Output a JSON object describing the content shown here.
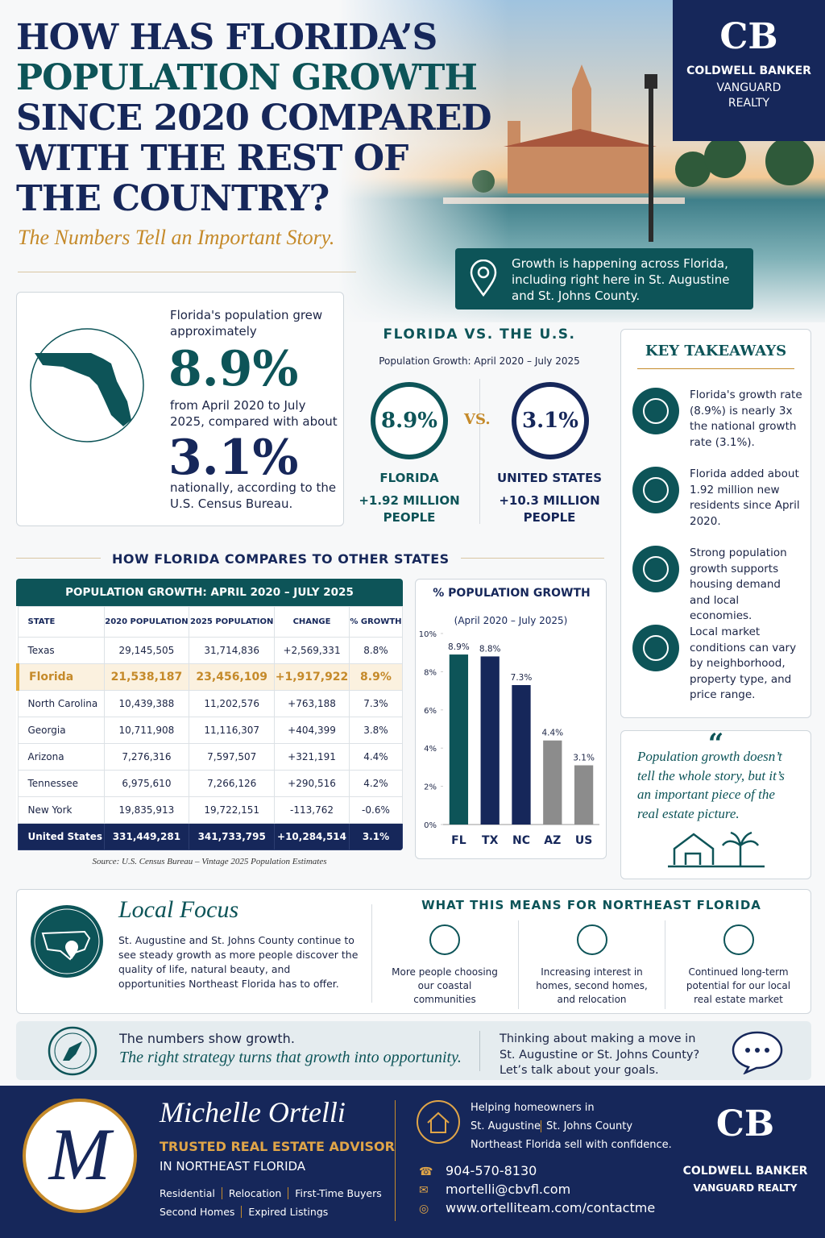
{
  "header": {
    "title_lines": [
      "HOW HAS FLORIDA’S",
      "POPULATION GROWTH",
      "SINCE 2020 COMPARED",
      "WITH THE REST OF",
      "THE COUNTRY?"
    ],
    "subtitle": "The Numbers Tell an Important Story.",
    "location_note": "Growth is happening across Florida, including right here in St. Augustine and St. Johns County."
  },
  "brand": {
    "monogram": "CB",
    "name": "COLDWELL BANKER",
    "sub_lines": [
      "VANGUARD",
      "REALTY"
    ]
  },
  "summary": {
    "intro": "Florida's population grew approximately",
    "florida_pct": "8.9%",
    "middle": "from April 2020 to July 2025, compared with about",
    "us_pct": "3.1%",
    "outro": "nationally, according to the U.S. Census Bureau."
  },
  "comparison": {
    "title": "FLORIDA VS. THE U.S.",
    "subtitle": "Population Growth: April 2020 – July 2025",
    "vs": "VS.",
    "florida": {
      "pct": "8.9%",
      "label": "FLORIDA",
      "added": "+1.92 MILLION PEOPLE"
    },
    "us": {
      "pct": "3.1%",
      "label": "UNITED STATES",
      "added": "+10.3 MILLION PEOPLE"
    }
  },
  "takeaways": {
    "title": "KEY TAKEAWAYS",
    "items": [
      "Florida's growth rate (8.9%) is nearly 3x the national growth rate (3.1%).",
      "Florida added about 1.92 million new residents since April 2020.",
      "Strong population growth supports housing demand and local economies.",
      "Local market conditions can vary by neighborhood, property type, and price range."
    ]
  },
  "quote": "Population growth doesn’t tell the whole story, but it’s an important piece of the real estate picture.",
  "table": {
    "section_title": "HOW FLORIDA COMPARES TO OTHER STATES",
    "title": "POPULATION GROWTH: APRIL 2020 – JULY 2025",
    "headers": [
      "STATE",
      "2020 POPULATION",
      "2025 POPULATION",
      "CHANGE",
      "% GROWTH"
    ],
    "rows": [
      [
        "Texas",
        "29,145,505",
        "31,714,836",
        "+2,569,331",
        "8.8%"
      ],
      [
        "Florida",
        "21,538,187",
        "23,456,109",
        "+1,917,922",
        "8.9%"
      ],
      [
        "North Carolina",
        "10,439,388",
        "11,202,576",
        "+763,188",
        "7.3%"
      ],
      [
        "Georgia",
        "10,711,908",
        "11,116,307",
        "+404,399",
        "3.8%"
      ],
      [
        "Arizona",
        "7,276,316",
        "7,597,507",
        "+321,191",
        "4.4%"
      ],
      [
        "Tennessee",
        "6,975,610",
        "7,266,126",
        "+290,516",
        "4.2%"
      ],
      [
        "New York",
        "19,835,913",
        "19,722,151",
        "-113,762",
        "-0.6%"
      ]
    ],
    "total": [
      "United States",
      "331,449,281",
      "341,733,795",
      "+10,284,514",
      "3.1%"
    ],
    "source": "Source: U.S. Census Bureau – Vintage 2025 Population Estimates"
  },
  "chart_data": {
    "type": "bar",
    "title": "% POPULATION GROWTH",
    "subtitle": "(April 2020 – July 2025)",
    "categories": [
      "FL",
      "TX",
      "NC",
      "AZ",
      "US"
    ],
    "values": [
      8.9,
      8.8,
      7.3,
      4.4,
      3.1
    ],
    "value_labels": [
      "8.9%",
      "8.8%",
      "7.3%",
      "4.4%",
      "3.1%"
    ],
    "colors": [
      "#0d5458",
      "#16275a",
      "#16275a",
      "#8c8c8c",
      "#8c8c8c"
    ],
    "ylim": [
      0,
      10
    ],
    "yticks": [
      {
        "value": 0,
        "label": "0%"
      },
      {
        "value": 2,
        "label": "2%"
      },
      {
        "value": 4,
        "label": "4%"
      },
      {
        "value": 6,
        "label": "6%"
      },
      {
        "value": 8,
        "label": "8%"
      },
      {
        "value": 10,
        "label": "10%"
      }
    ]
  },
  "local": {
    "title": "Local Focus",
    "text": "St. Augustine and St. Johns County continue to see steady growth as more people discover the quality of life, natural beauty, and opportunities Northeast Florida has to offer.",
    "heading": "WHAT THIS MEANS FOR NORTHEAST FLORIDA",
    "points": [
      "More people choosing our coastal communities",
      "Increasing interest in homes, second homes, and relocation",
      "Continued long-term potential for our local real estate market"
    ]
  },
  "strategy": {
    "line1": "The numbers show growth.",
    "line2": "The right strategy turns that growth into opportunity.",
    "cta": "Thinking about making a move in St. Augustine or St. Johns County? Let’s talk about your goals."
  },
  "agent": {
    "monogram": "M",
    "name": "Michelle Ortelli",
    "role": "TRUSTED REAL ESTATE ADVISOR",
    "region": "IN NORTHEAST FLORIDA",
    "services": [
      [
        "Residential",
        "Relocation",
        "First-Time Buyers"
      ],
      [
        "Second Homes",
        "Expired Listings"
      ]
    ],
    "tagline": [
      "Helping homeowners in",
      "St. Augustine",
      "St. Johns County",
      "Northeast Florida sell with confidence."
    ],
    "phone": "904-570-8130",
    "email": "mortelli@cbvfl.com",
    "web": "www.ortelliteam.com/contactme"
  },
  "footer_brand": {
    "monogram": "CB",
    "name": "COLDWELL BANKER",
    "sub": "VANGUARD REALTY"
  }
}
